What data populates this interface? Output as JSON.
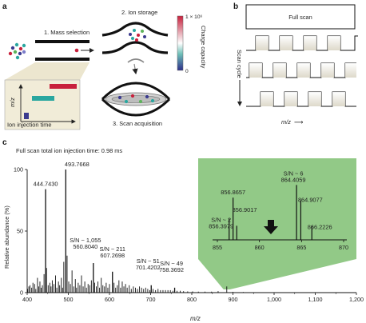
{
  "panel_a": {
    "label": "a",
    "step1": "1. Mass selection",
    "step2": "2. Ion storage",
    "step3": "3. Scan acquisition",
    "inset_y_label": "m/z",
    "inset_x_label": "Ion injection time",
    "colorbar_top": "1 × 10⁶",
    "colorbar_bottom": "0",
    "colorbar_label": "Charge capacity",
    "colors": {
      "blue": "#3a3a8f",
      "teal": "#2aa7a0",
      "red": "#c8203c",
      "green": "#5db35b"
    }
  },
  "panel_b": {
    "label": "b",
    "full_scan": "Full scan",
    "y_label": "Scan cycle",
    "x_label": "m/z",
    "arrow_glyph": "⟶"
  },
  "panel_c": {
    "label": "c",
    "title": "Full scan total ion injection time: 0.98 ms",
    "ylabel": "Relative abundance (%)",
    "xlabel": "m/z",
    "inset_color": "#7fbf72"
  },
  "chart_data": [
    {
      "type": "bar",
      "title": "Full scan total ion injection time: 0.98 ms",
      "xlabel": "m/z",
      "ylabel": "Relative abundance (%)",
      "xlim": [
        400,
        1200
      ],
      "ylim": [
        0,
        100
      ],
      "x_ticks": [
        400,
        500,
        600,
        700,
        800,
        900,
        1000,
        1100,
        1200
      ],
      "x_tick_labels": [
        "400",
        "500",
        "600",
        "700",
        "800",
        "900",
        "1,000",
        "1,100",
        "1,200"
      ],
      "y_ticks": [
        0,
        50,
        100
      ],
      "y_tick_labels": [
        "0",
        "50",
        "100"
      ],
      "peaks": [
        {
          "x": 444.743,
          "y": 84,
          "label": "444.7430"
        },
        {
          "x": 493.7668,
          "y": 100,
          "label": "493.7668"
        },
        {
          "x": 560.804,
          "y": 24,
          "sn": "S/N ~ 1,055",
          "label": "560.8040"
        },
        {
          "x": 607.2698,
          "y": 17,
          "sn": "S/N ~ 211",
          "label": "607.2698"
        },
        {
          "x": 701.4202,
          "y": 6,
          "sn": "S/N ~ 51",
          "label": "701.4202"
        },
        {
          "x": 758.3692,
          "y": 4,
          "sn": "S/N ~ 49",
          "label": "758.3692"
        }
      ],
      "minor_peaks": [
        [
          401,
          3
        ],
        [
          404,
          5
        ],
        [
          407,
          6
        ],
        [
          411,
          4
        ],
        [
          414,
          8
        ],
        [
          418,
          7
        ],
        [
          421,
          3
        ],
        [
          425,
          12
        ],
        [
          428,
          5
        ],
        [
          431,
          9
        ],
        [
          434,
          4
        ],
        [
          437,
          6
        ],
        [
          441,
          15
        ],
        [
          447,
          20
        ],
        [
          451,
          6
        ],
        [
          455,
          8
        ],
        [
          458,
          5
        ],
        [
          461,
          10
        ],
        [
          465,
          7
        ],
        [
          469,
          14
        ],
        [
          472,
          4
        ],
        [
          476,
          9
        ],
        [
          479,
          6
        ],
        [
          483,
          12
        ],
        [
          486,
          4
        ],
        [
          489,
          25
        ],
        [
          497,
          30
        ],
        [
          501,
          9
        ],
        [
          505,
          7
        ],
        [
          509,
          18
        ],
        [
          513,
          5
        ],
        [
          517,
          11
        ],
        [
          520,
          4
        ],
        [
          524,
          8
        ],
        [
          528,
          6
        ],
        [
          532,
          14
        ],
        [
          536,
          5
        ],
        [
          540,
          9
        ],
        [
          544,
          4
        ],
        [
          548,
          7
        ],
        [
          552,
          6
        ],
        [
          556,
          10
        ],
        [
          564,
          8
        ],
        [
          568,
          5
        ],
        [
          572,
          9
        ],
        [
          576,
          4
        ],
        [
          580,
          12
        ],
        [
          584,
          6
        ],
        [
          588,
          5
        ],
        [
          592,
          8
        ],
        [
          596,
          4
        ],
        [
          600,
          7
        ],
        [
          611,
          8
        ],
        [
          615,
          4
        ],
        [
          619,
          6
        ],
        [
          623,
          10
        ],
        [
          627,
          4
        ],
        [
          631,
          9
        ],
        [
          635,
          5
        ],
        [
          639,
          7
        ],
        [
          643,
          4
        ],
        [
          648,
          6
        ],
        [
          653,
          3
        ],
        [
          658,
          5
        ],
        [
          663,
          4
        ],
        [
          668,
          3
        ],
        [
          673,
          5
        ],
        [
          678,
          4
        ],
        [
          683,
          3
        ],
        [
          688,
          4
        ],
        [
          693,
          3
        ],
        [
          698,
          2
        ],
        [
          706,
          3
        ],
        [
          712,
          2
        ],
        [
          718,
          3
        ],
        [
          724,
          2
        ],
        [
          730,
          2
        ],
        [
          736,
          2
        ],
        [
          742,
          2
        ],
        [
          748,
          2
        ],
        [
          754,
          1.5
        ],
        [
          764,
          1.5
        ],
        [
          772,
          1.5
        ],
        [
          780,
          1.2
        ],
        [
          790,
          1
        ],
        [
          802,
          1
        ],
        [
          816,
          0.8
        ],
        [
          832,
          0.8
        ],
        [
          848,
          0.8
        ],
        [
          864,
          1.2
        ],
        [
          885,
          5
        ],
        [
          900,
          0.6
        ],
        [
          925,
          0.5
        ]
      ]
    },
    {
      "type": "bar",
      "title": "",
      "xlabel": "",
      "ylabel": "",
      "xlim": [
        855,
        870
      ],
      "ylim": [
        0,
        100
      ],
      "x_ticks": [
        855,
        860,
        865,
        870
      ],
      "x_tick_labels": [
        "855",
        "860",
        "865",
        "870"
      ],
      "peaks": [
        {
          "x": 856.3979,
          "y": 30,
          "sn": "S/N ~ 2",
          "label": "856.3979"
        },
        {
          "x": 856.8657,
          "y": 60,
          "label": "856.8657"
        },
        {
          "x": 857.3,
          "y": 20
        },
        {
          "x": 864.4059,
          "y": 78,
          "sn": "S/N ~ 6",
          "label": "864.4059"
        },
        {
          "x": 864.9077,
          "y": 56,
          "label": "864.9077"
        },
        {
          "x": 866.2226,
          "y": 20,
          "label": "866.2226"
        }
      ],
      "extra_labels": [
        {
          "x": 856.9017,
          "label": "856.9017"
        }
      ]
    }
  ]
}
